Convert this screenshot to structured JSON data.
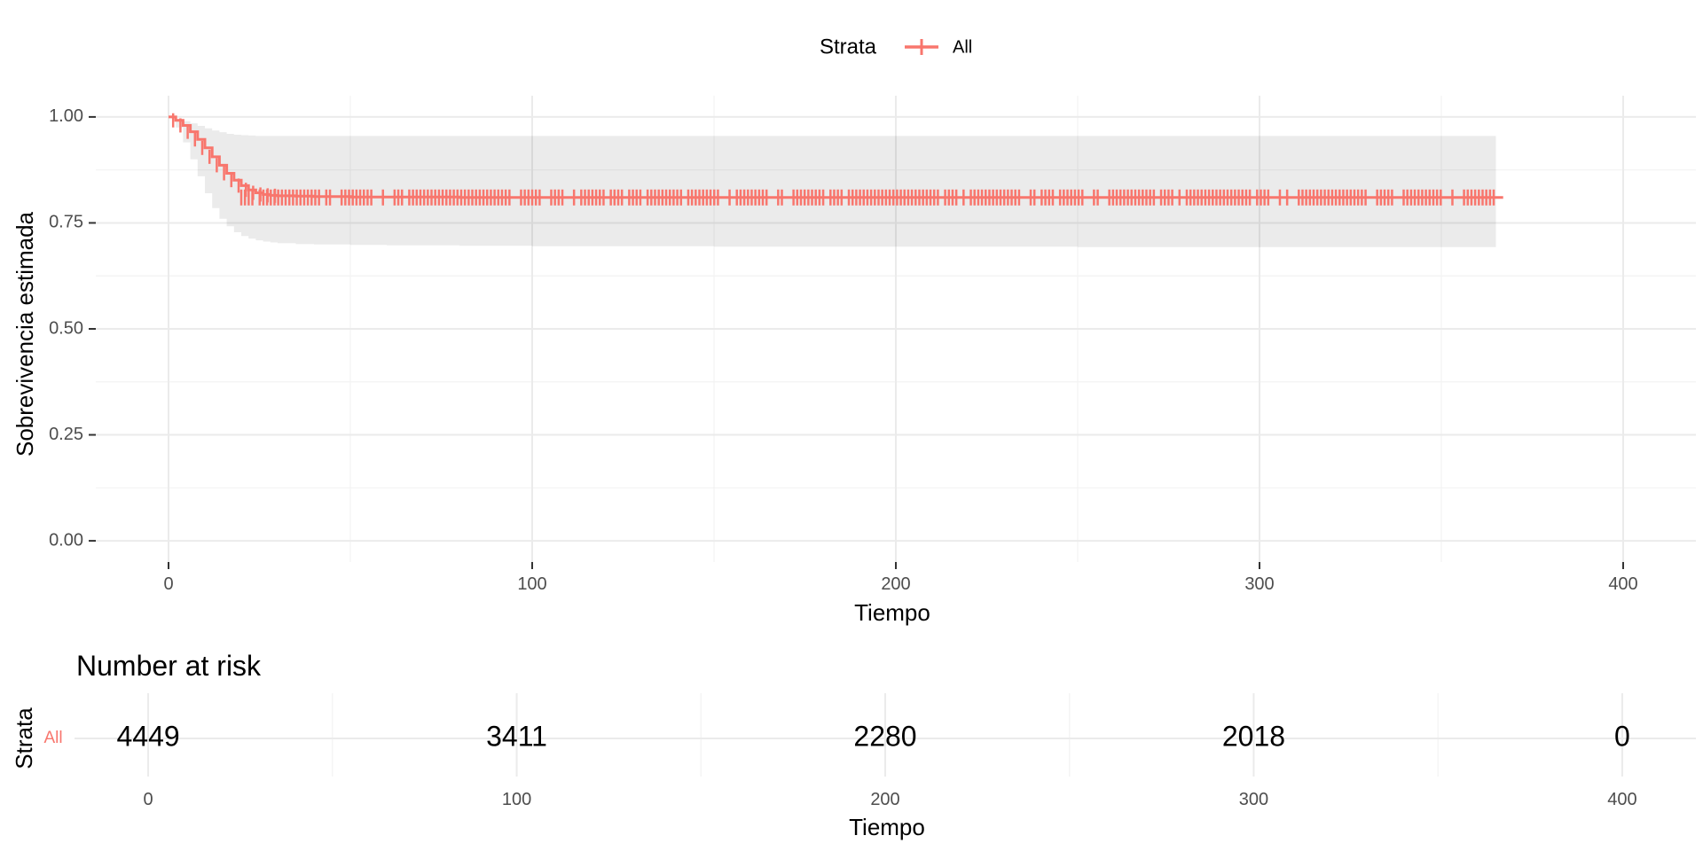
{
  "chart_data": [
    {
      "type": "line",
      "subtype": "kaplan-meier-survival",
      "title": "",
      "xlabel": "Tiempo",
      "ylabel": "Sobrevivencia estimada",
      "xlim": [
        -20,
        420
      ],
      "ylim": [
        -0.05,
        1.05
      ],
      "x_ticks": [
        "0",
        "100",
        "200",
        "300",
        "400"
      ],
      "y_ticks": [
        "0.00",
        "0.25",
        "0.50",
        "0.75",
        "1.00"
      ],
      "grid": true,
      "legend": {
        "position": "top",
        "title": "Strata",
        "entries": [
          "All"
        ]
      },
      "series": [
        {
          "name": "All",
          "color": "#F8766D",
          "x": [
            0,
            2,
            4,
            6,
            8,
            10,
            12,
            14,
            16,
            18,
            20,
            22,
            24,
            26,
            28,
            30,
            35,
            40,
            50,
            60,
            80,
            100,
            150,
            200,
            250,
            300,
            350,
            365
          ],
          "y": [
            1.0,
            0.992,
            0.98,
            0.965,
            0.947,
            0.927,
            0.906,
            0.886,
            0.867,
            0.851,
            0.838,
            0.828,
            0.821,
            0.817,
            0.815,
            0.814,
            0.813,
            0.812,
            0.811,
            0.811,
            0.81,
            0.81,
            0.81,
            0.81,
            0.81,
            0.81,
            0.81,
            0.81
          ],
          "ci_upper": [
            1.0,
            0.995,
            0.99,
            0.985,
            0.979,
            0.973,
            0.968,
            0.964,
            0.96,
            0.958,
            0.957,
            0.956,
            0.955,
            0.955,
            0.955,
            0.955,
            0.955,
            0.955,
            0.955,
            0.955,
            0.955,
            0.955,
            0.955,
            0.955,
            0.955,
            0.955,
            0.955,
            0.955
          ],
          "ci_lower": [
            1.0,
            0.975,
            0.94,
            0.9,
            0.86,
            0.82,
            0.785,
            0.76,
            0.742,
            0.728,
            0.719,
            0.713,
            0.709,
            0.706,
            0.704,
            0.702,
            0.7,
            0.699,
            0.698,
            0.697,
            0.696,
            0.695,
            0.694,
            0.694,
            0.693,
            0.693,
            0.693,
            0.693
          ],
          "censor_y": 0.81,
          "censor_x_range": [
            20,
            365
          ],
          "line_end_x": 367
        }
      ]
    },
    {
      "type": "table",
      "title": "Number at risk",
      "xlabel": "Tiempo",
      "ylabel": "Strata",
      "xlim": [
        -20,
        420
      ],
      "x_ticks": [
        "0",
        "100",
        "200",
        "300",
        "400"
      ],
      "strata": [
        "All"
      ],
      "times": [
        0,
        100,
        200,
        300,
        400
      ],
      "values": [
        "4449",
        "3411",
        "2280",
        "2018",
        "0"
      ]
    }
  ]
}
